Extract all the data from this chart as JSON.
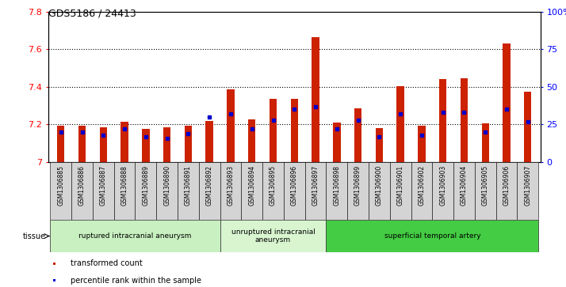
{
  "title": "GDS5186 / 24413",
  "samples": [
    "GSM1306885",
    "GSM1306886",
    "GSM1306887",
    "GSM1306888",
    "GSM1306889",
    "GSM1306890",
    "GSM1306891",
    "GSM1306892",
    "GSM1306893",
    "GSM1306894",
    "GSM1306895",
    "GSM1306896",
    "GSM1306897",
    "GSM1306898",
    "GSM1306899",
    "GSM1306900",
    "GSM1306901",
    "GSM1306902",
    "GSM1306903",
    "GSM1306904",
    "GSM1306905",
    "GSM1306906",
    "GSM1306907"
  ],
  "transformed_count": [
    7.195,
    7.195,
    7.185,
    7.215,
    7.175,
    7.185,
    7.195,
    7.22,
    7.385,
    7.225,
    7.335,
    7.335,
    7.665,
    7.21,
    7.285,
    7.18,
    7.405,
    7.195,
    7.44,
    7.445,
    7.205,
    7.63,
    7.375
  ],
  "percentile_rank": [
    20,
    20,
    18,
    22,
    17,
    16,
    19,
    30,
    32,
    22,
    28,
    35,
    37,
    22,
    28,
    17,
    32,
    18,
    33,
    33,
    20,
    35,
    27
  ],
  "groups": [
    {
      "label": "ruptured intracranial aneurysm",
      "start": 0,
      "end": 7,
      "color": "#c8f0c0"
    },
    {
      "label": "unruptured intracranial\naneurysm",
      "start": 8,
      "end": 12,
      "color": "#d8f5d0"
    },
    {
      "label": "superficial temporal artery",
      "start": 13,
      "end": 22,
      "color": "#44cc44"
    }
  ],
  "ymin": 7.0,
  "ymax": 7.8,
  "yticks": [
    7.0,
    7.2,
    7.4,
    7.6,
    7.8
  ],
  "right_yticks": [
    0,
    25,
    50,
    75,
    100
  ],
  "right_ytick_labels": [
    "0",
    "25",
    "50",
    "75",
    "100%"
  ],
  "bar_color": "#cc2200",
  "percentile_color": "#0000cc",
  "tissue_label": "tissue",
  "legend_items": [
    {
      "label": "transformed count",
      "color": "#cc2200"
    },
    {
      "label": "percentile rank within the sample",
      "color": "#0000cc"
    }
  ]
}
